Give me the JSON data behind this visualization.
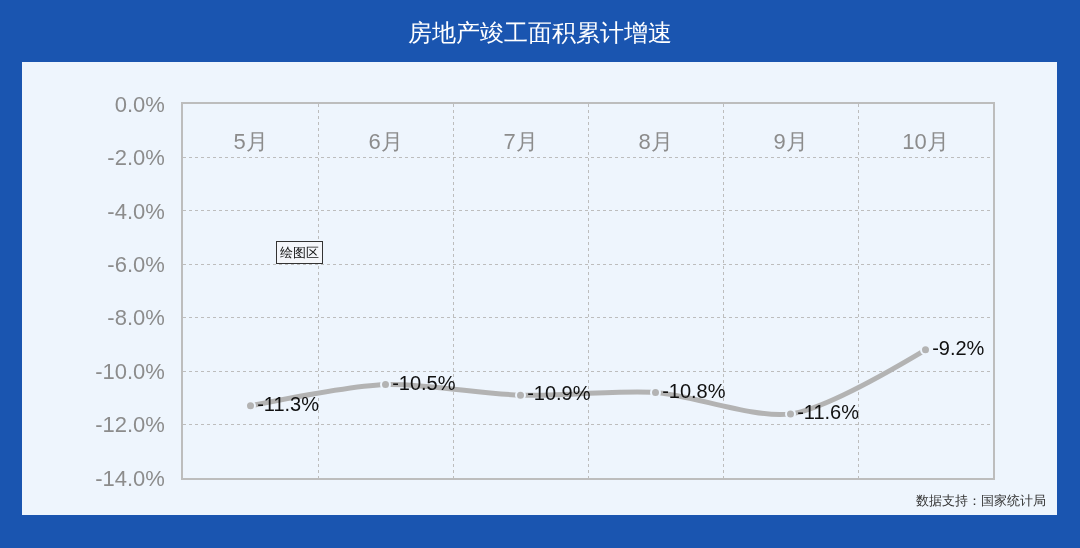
{
  "chart_data": {
    "type": "line",
    "title": "房地产竣工面积累计增速",
    "categories": [
      "5月",
      "6月",
      "7月",
      "8月",
      "9月",
      "10月"
    ],
    "series": [
      {
        "color": "#b3b3b3",
        "values": [
          -11.3,
          -10.5,
          -10.9,
          -10.8,
          -11.6,
          -9.2
        ],
        "value_labels": [
          "-11.3%",
          "-10.5%",
          "-10.9%",
          "-10.8%",
          "-11.6%",
          "-9.2%"
        ]
      }
    ],
    "ylim": [
      -14,
      0
    ],
    "yticks": [
      {
        "value": 0,
        "label": "0.0%"
      },
      {
        "value": -2,
        "label": "-2.0%"
      },
      {
        "value": -4,
        "label": "-4.0%"
      },
      {
        "value": -6,
        "label": "-6.0%"
      },
      {
        "value": -8,
        "label": "-8.0%"
      },
      {
        "value": -10,
        "label": "-10.0%"
      },
      {
        "value": -12,
        "label": "-12.0%"
      },
      {
        "value": -14,
        "label": "-14.0%"
      }
    ],
    "grid": true,
    "marker": "circle",
    "line_style": "solid",
    "annotations": [
      "数据支持：国家统计局",
      "绘图区"
    ]
  }
}
